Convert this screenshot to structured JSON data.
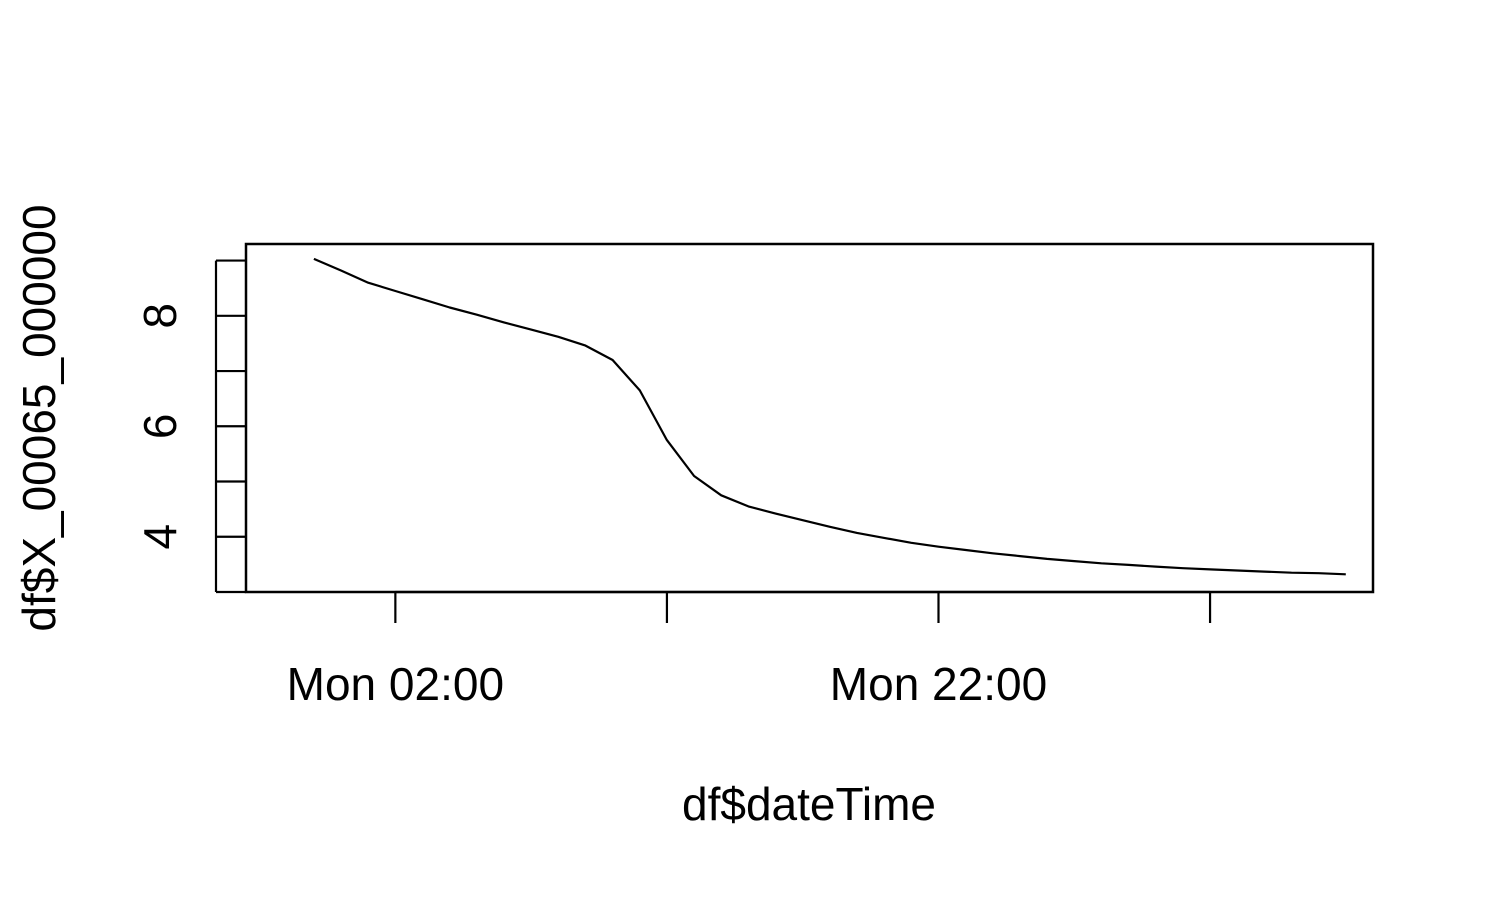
{
  "chart_data": {
    "type": "line",
    "title": "",
    "xlabel": "df$dateTime",
    "ylabel": "df$X_00065_000000",
    "x_axis": {
      "ticks": [
        {
          "value": "Mon 02:00",
          "label": "Mon 02:00"
        },
        {
          "value": "Mon 12:00",
          "label": ""
        },
        {
          "value": "Mon 22:00",
          "label": "Mon 22:00"
        },
        {
          "value": "Tue 08:00",
          "label": ""
        }
      ],
      "range": [
        "Sun 20:30",
        "Tue 14:00"
      ]
    },
    "y_axis": {
      "ticks": [
        {
          "value": 3,
          "label": ""
        },
        {
          "value": 4,
          "label": "4"
        },
        {
          "value": 5,
          "label": ""
        },
        {
          "value": 6,
          "label": "6"
        },
        {
          "value": 7,
          "label": ""
        },
        {
          "value": 8,
          "label": "8"
        },
        {
          "value": 9,
          "label": ""
        }
      ],
      "range": [
        3.0,
        9.3
      ]
    },
    "grid": false,
    "legend": "none",
    "series": [
      {
        "color": "#000000",
        "points": [
          {
            "x": "Sun 23:00",
            "y": 9.03
          },
          {
            "x": "Mon 00:00",
            "y": 8.82
          },
          {
            "x": "Mon 01:00",
            "y": 8.6
          },
          {
            "x": "Mon 02:00",
            "y": 8.45
          },
          {
            "x": "Mon 03:00",
            "y": 8.3
          },
          {
            "x": "Mon 04:00",
            "y": 8.15
          },
          {
            "x": "Mon 05:00",
            "y": 8.02
          },
          {
            "x": "Mon 06:00",
            "y": 7.88
          },
          {
            "x": "Mon 07:00",
            "y": 7.75
          },
          {
            "x": "Mon 08:00",
            "y": 7.62
          },
          {
            "x": "Mon 09:00",
            "y": 7.46
          },
          {
            "x": "Mon 10:00",
            "y": 7.2
          },
          {
            "x": "Mon 11:00",
            "y": 6.65
          },
          {
            "x": "Mon 12:00",
            "y": 5.75
          },
          {
            "x": "Mon 13:00",
            "y": 5.1
          },
          {
            "x": "Mon 14:00",
            "y": 4.75
          },
          {
            "x": "Mon 15:00",
            "y": 4.55
          },
          {
            "x": "Mon 16:00",
            "y": 4.42
          },
          {
            "x": "Mon 17:00",
            "y": 4.3
          },
          {
            "x": "Mon 18:00",
            "y": 4.18
          },
          {
            "x": "Mon 19:00",
            "y": 4.07
          },
          {
            "x": "Mon 20:00",
            "y": 3.98
          },
          {
            "x": "Mon 21:00",
            "y": 3.89
          },
          {
            "x": "Mon 22:00",
            "y": 3.82
          },
          {
            "x": "Mon 23:00",
            "y": 3.76
          },
          {
            "x": "Tue 00:00",
            "y": 3.7
          },
          {
            "x": "Tue 01:00",
            "y": 3.65
          },
          {
            "x": "Tue 02:00",
            "y": 3.6
          },
          {
            "x": "Tue 03:00",
            "y": 3.56
          },
          {
            "x": "Tue 04:00",
            "y": 3.52
          },
          {
            "x": "Tue 05:00",
            "y": 3.49
          },
          {
            "x": "Tue 06:00",
            "y": 3.46
          },
          {
            "x": "Tue 07:00",
            "y": 3.43
          },
          {
            "x": "Tue 08:00",
            "y": 3.41
          },
          {
            "x": "Tue 09:00",
            "y": 3.39
          },
          {
            "x": "Tue 10:00",
            "y": 3.37
          },
          {
            "x": "Tue 11:00",
            "y": 3.35
          },
          {
            "x": "Tue 12:00",
            "y": 3.34
          },
          {
            "x": "Tue 13:00",
            "y": 3.32
          }
        ]
      }
    ]
  }
}
